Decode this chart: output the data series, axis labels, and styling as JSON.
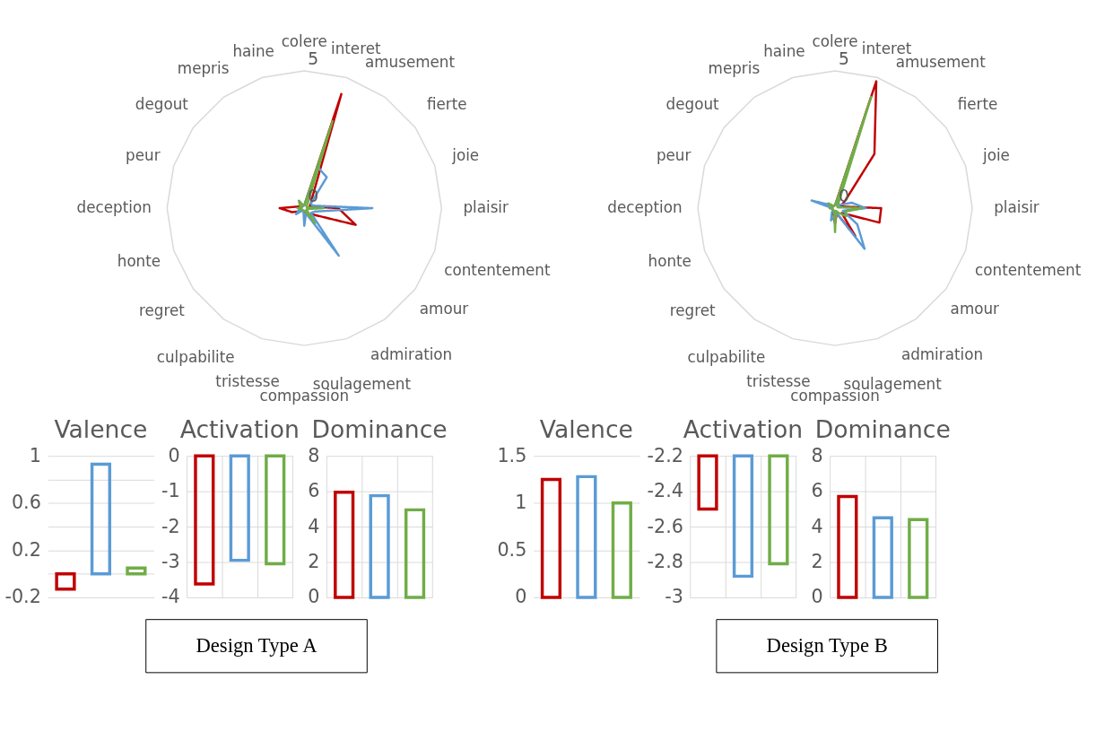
{
  "chart_data": [
    {
      "type": "radar",
      "categories": [
        "colere",
        "interet",
        "amusement",
        "fierte",
        "joie",
        "plaisir",
        "contentement",
        "amour",
        "admiration",
        "soulagement",
        "compassion",
        "tristesse",
        "culpabilite",
        "regret",
        "honte",
        "deception",
        "peur",
        "degout",
        "mepris",
        "haine"
      ],
      "ylim": [
        0,
        5
      ],
      "yticks": [
        0,
        5
      ],
      "grid": true,
      "line_style": "solid",
      "annotations": [
        "Design Type A"
      ],
      "series": [
        {
          "color": "#c00000",
          "values": [
            0.1,
            4.37,
            0.5,
            0.3,
            0.2,
            1.24,
            1.97,
            0.4,
            0.3,
            0.2,
            0.1,
            0.1,
            0.1,
            0.2,
            0.47,
            0.9,
            0.2,
            0.1,
            0.1,
            0.1
          ]
        },
        {
          "color": "#5b9bd5",
          "values": [
            0.1,
            1.58,
            1.39,
            0.3,
            0.3,
            2.48,
            0.4,
            0.3,
            2.14,
            0.2,
            0.64,
            0.1,
            0.1,
            0.37,
            0.2,
            0.1,
            0.1,
            0.1,
            0.1,
            0.1
          ]
        },
        {
          "color": "#70ad47",
          "values": [
            0.1,
            3.33,
            0.2,
            0.1,
            0.1,
            0.7,
            0.1,
            0.1,
            0.67,
            0.1,
            0.1,
            0.1,
            0.1,
            0.1,
            0.1,
            0.25,
            0.1,
            0.2,
            0.34,
            0.1
          ]
        }
      ]
    },
    {
      "type": "radar",
      "categories": [
        "colere",
        "interet",
        "amusement",
        "fierte",
        "joie",
        "plaisir",
        "contentement",
        "amour",
        "admiration",
        "soulagement",
        "compassion",
        "tristesse",
        "culpabilite",
        "regret",
        "honte",
        "deception",
        "peur",
        "degout",
        "mepris",
        "haine"
      ],
      "ylim": [
        0,
        5
      ],
      "yticks": [
        0,
        5
      ],
      "grid": true,
      "line_style": "solid",
      "annotations": [
        "Design Type B"
      ],
      "series": [
        {
          "color": "#c00000",
          "values": [
            0.1,
            4.86,
            2.44,
            0.45,
            0.2,
            1.68,
            1.7,
            0.3,
            1.26,
            0.2,
            0.56,
            0.2,
            0.1,
            0.1,
            0.1,
            0.1,
            0.1,
            0.1,
            0.1,
            0.1
          ]
        },
        {
          "color": "#5b9bd5",
          "values": [
            0.1,
            0.3,
            0.2,
            0.2,
            0.64,
            1.12,
            0.3,
            1.0,
            1.83,
            0.2,
            0.3,
            0.47,
            0.2,
            0.1,
            0.1,
            0.1,
            0.9,
            0.2,
            0.1,
            0.1
          ]
        },
        {
          "color": "#70ad47",
          "values": [
            0.1,
            4.26,
            0.2,
            0.1,
            0.1,
            1.0,
            0.4,
            0.5,
            0.2,
            0.1,
            0.87,
            0.1,
            0.1,
            0.1,
            0.1,
            0.2,
            0.1,
            0.3,
            0.1,
            0.1
          ]
        }
      ]
    },
    {
      "type": "bar",
      "title": "Valence",
      "categories": [
        null,
        null,
        null
      ],
      "values": [
        -0.13,
        0.93,
        0.05
      ],
      "colors": [
        "#c00000",
        "#5b9bd5",
        "#70ad47"
      ],
      "ylim": [
        -0.2,
        1
      ],
      "yticks": [
        -0.2,
        {
          "value": 0,
          "label": null
        },
        0.2,
        {
          "value": 0.4,
          "label": null
        },
        0.6,
        {
          "value": 0.8,
          "label": null
        },
        1
      ],
      "grid": "y",
      "tick_labels": "y"
    },
    {
      "type": "bar",
      "title": "Activation",
      "categories": [
        null,
        null,
        null
      ],
      "values": [
        -3.62,
        -2.95,
        -3.05
      ],
      "colors": [
        "#c00000",
        "#5b9bd5",
        "#70ad47"
      ],
      "ylim": [
        -4,
        0
      ],
      "yticks": [
        -4,
        -3,
        -2,
        -1,
        0
      ],
      "grid": true,
      "tick_labels": "y"
    },
    {
      "type": "bar",
      "title": "Dominance",
      "categories": [
        null,
        null,
        null
      ],
      "values": [
        5.95,
        5.75,
        4.95
      ],
      "colors": [
        "#c00000",
        "#5b9bd5",
        "#70ad47"
      ],
      "ylim": [
        0,
        8
      ],
      "yticks": [
        0,
        2,
        4,
        6,
        8
      ],
      "grid": true,
      "tick_labels": "y"
    },
    {
      "type": "bar",
      "title": "Valence",
      "categories": [
        null,
        null,
        null
      ],
      "values": [
        1.25,
        1.28,
        1.0
      ],
      "colors": [
        "#c00000",
        "#5b9bd5",
        "#70ad47"
      ],
      "ylim": [
        0,
        1.5
      ],
      "yticks": [
        0,
        0.5,
        1,
        1.5
      ],
      "grid": "y",
      "tick_labels": "y"
    },
    {
      "type": "bar",
      "title": "Activation",
      "categories": [
        null,
        null,
        null
      ],
      "values": [
        -2.5,
        -2.88,
        -2.81
      ],
      "colors": [
        "#c00000",
        "#5b9bd5",
        "#70ad47"
      ],
      "ylim": [
        -3,
        -2.2
      ],
      "yticks": [
        -3,
        -2.8,
        -2.6,
        -2.4,
        -2.2
      ],
      "grid": true,
      "tick_labels": "y"
    },
    {
      "type": "bar",
      "title": "Dominance",
      "categories": [
        null,
        null,
        null
      ],
      "values": [
        5.7,
        4.5,
        4.4
      ],
      "colors": [
        "#c00000",
        "#5b9bd5",
        "#70ad47"
      ],
      "ylim": [
        0,
        8
      ],
      "yticks": [
        0,
        2,
        4,
        6,
        8
      ],
      "grid": true,
      "tick_labels": "y"
    }
  ]
}
